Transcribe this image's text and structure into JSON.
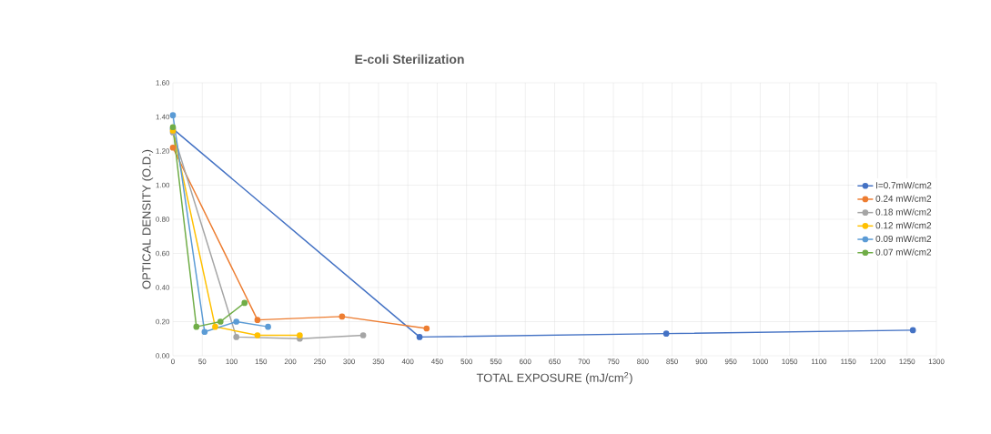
{
  "chart_data": {
    "type": "line",
    "title": "E-coli Sterilization",
    "xlabel": "TOTAL EXPOSURE (mJ/cm$^{2}$)",
    "ylabel": "OPTICAL DENSITY (O.D.)",
    "xlim": [
      0,
      1300
    ],
    "xticks": [
      0,
      50,
      100,
      150,
      200,
      250,
      300,
      350,
      400,
      450,
      500,
      550,
      600,
      650,
      700,
      750,
      800,
      850,
      900,
      950,
      1000,
      1050,
      1100,
      1150,
      1200,
      1250,
      1300
    ],
    "ylim": [
      0,
      1.6
    ],
    "yticks": [
      {
        "value": 0,
        "label": "0.00"
      },
      {
        "value": 0.2,
        "label": "0.20"
      },
      {
        "value": 0.4,
        "label": "0.40"
      },
      {
        "value": 0.6,
        "label": "0.60"
      },
      {
        "value": 0.8,
        "label": "0.80"
      },
      {
        "value": 1.0,
        "label": "1.00"
      },
      {
        "value": 1.2,
        "label": "1.20"
      },
      {
        "value": 1.4,
        "label": "1.40"
      },
      {
        "value": 1.6,
        "label": "1.60"
      }
    ],
    "grid": true,
    "legend": "right",
    "marker": "circle",
    "line_style": "solid",
    "series": [
      {
        "name": "I=0.7mW/cm2",
        "color": "#4472c4",
        "x": [
          0,
          420,
          840,
          1260
        ],
        "values": [
          1.33,
          0.11,
          0.13,
          0.15
        ]
      },
      {
        "name": "0.24 mW/cm2",
        "color": "#ed7d31",
        "x": [
          0,
          144,
          288,
          432
        ],
        "values": [
          1.22,
          0.21,
          0.23,
          0.16
        ]
      },
      {
        "name": "0.18 mW/cm2",
        "color": "#a5a5a5",
        "x": [
          0,
          108,
          216,
          324
        ],
        "values": [
          1.31,
          0.11,
          0.1,
          0.12
        ]
      },
      {
        "name": "0.12 mW/cm2",
        "color": "#ffc000",
        "x": [
          0,
          72,
          144,
          216
        ],
        "values": [
          1.32,
          0.17,
          0.12,
          0.12
        ]
      },
      {
        "name": "0.09 mW/cm2",
        "color": "#5b9bd5",
        "x": [
          0,
          54,
          108,
          162
        ],
        "values": [
          1.41,
          0.14,
          0.2,
          0.17
        ]
      },
      {
        "name": "0.07 mW/cm2",
        "color": "#70ad47",
        "x": [
          0,
          40,
          81,
          122
        ],
        "values": [
          1.34,
          0.17,
          0.2,
          0.31
        ]
      }
    ]
  }
}
